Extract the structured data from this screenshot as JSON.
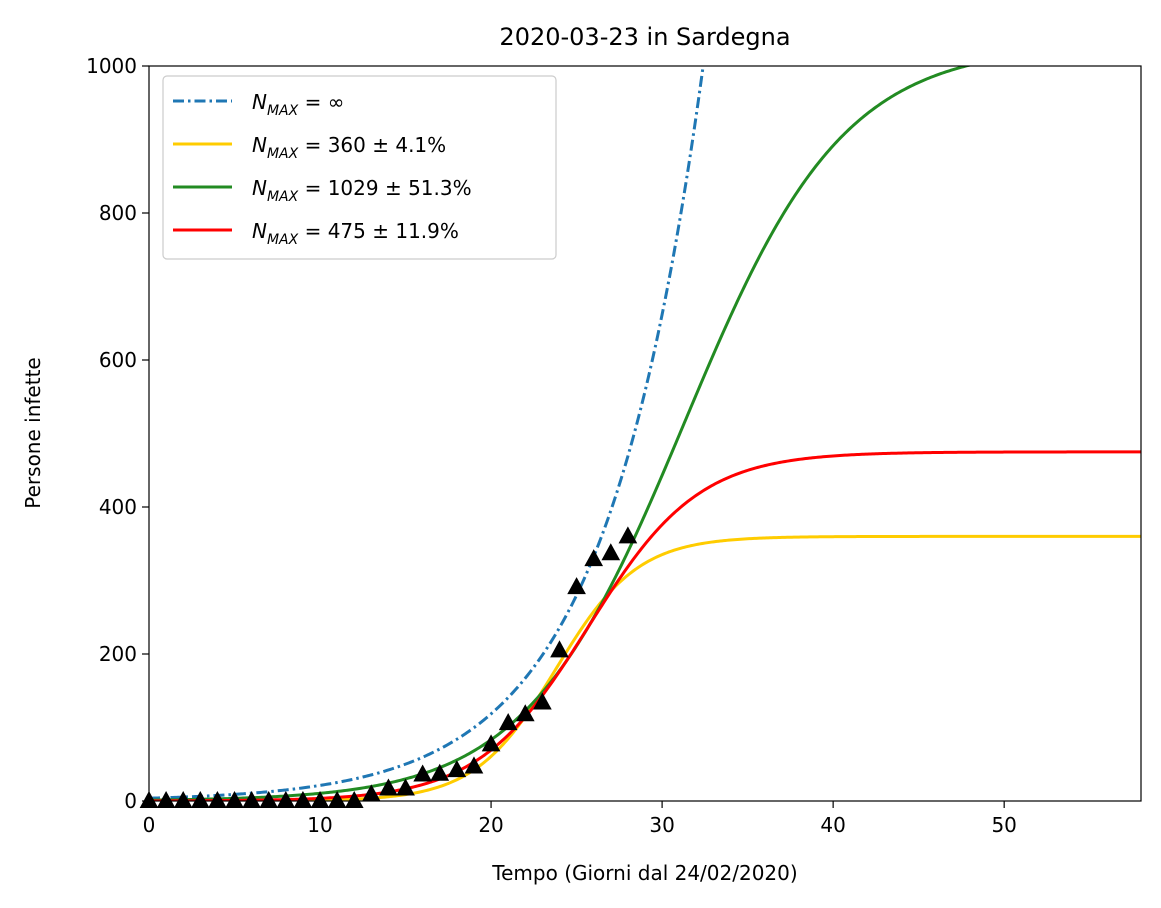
{
  "chart_data": {
    "type": "line",
    "title": "2020-03-23 in Sardegna",
    "xlabel": "Tempo (Giorni dal 24/02/2020)",
    "ylabel": "Persone infette",
    "xlim": [
      0,
      58
    ],
    "ylim": [
      0,
      1000
    ],
    "xticks": [
      0,
      10,
      20,
      30,
      40,
      50
    ],
    "yticks": [
      0,
      200,
      400,
      600,
      800,
      1000
    ],
    "grid": false,
    "legend_position": "top-left",
    "series": [
      {
        "name_main": "N",
        "name_sub": "MAX",
        "name_rest": " = ∞",
        "style": "dashdot",
        "color": "#1f77b4",
        "model": "exponential",
        "params": {
          "A": 3.8,
          "k": 0.172
        }
      },
      {
        "name_main": "N",
        "name_sub": "MAX",
        "name_rest": " = 360 ± 4.1%",
        "style": "solid",
        "color": "#ffcc00",
        "model": "logistic",
        "params": {
          "K": 360,
          "r": 0.42,
          "t0": 23.8
        }
      },
      {
        "name_main": "N",
        "name_sub": "MAX",
        "name_rest": " = 1029 ± 51.3%",
        "style": "solid",
        "color": "#228b22",
        "model": "logistic",
        "params": {
          "K": 1029,
          "r": 0.215,
          "t0": 31.3
        }
      },
      {
        "name_main": "N",
        "name_sub": "MAX",
        "name_rest": " = 475 ± 11.9%",
        "style": "solid",
        "color": "#ff0000",
        "model": "logistic",
        "params": {
          "K": 475,
          "r": 0.31,
          "t0": 25.7
        }
      }
    ],
    "observed": {
      "marker": "triangle",
      "color": "#000000",
      "x": [
        0,
        1,
        2,
        3,
        4,
        5,
        6,
        7,
        8,
        9,
        10,
        11,
        12,
        13,
        14,
        15,
        16,
        17,
        18,
        19,
        20,
        21,
        22,
        23,
        24,
        25,
        26,
        27,
        28
      ],
      "y": [
        0,
        0,
        0,
        0,
        0,
        0,
        0,
        0,
        0,
        0,
        0,
        0,
        0,
        9,
        17,
        17,
        36,
        37,
        42,
        47,
        77,
        106,
        118,
        134,
        205,
        291,
        329,
        337,
        360
      ]
    }
  }
}
